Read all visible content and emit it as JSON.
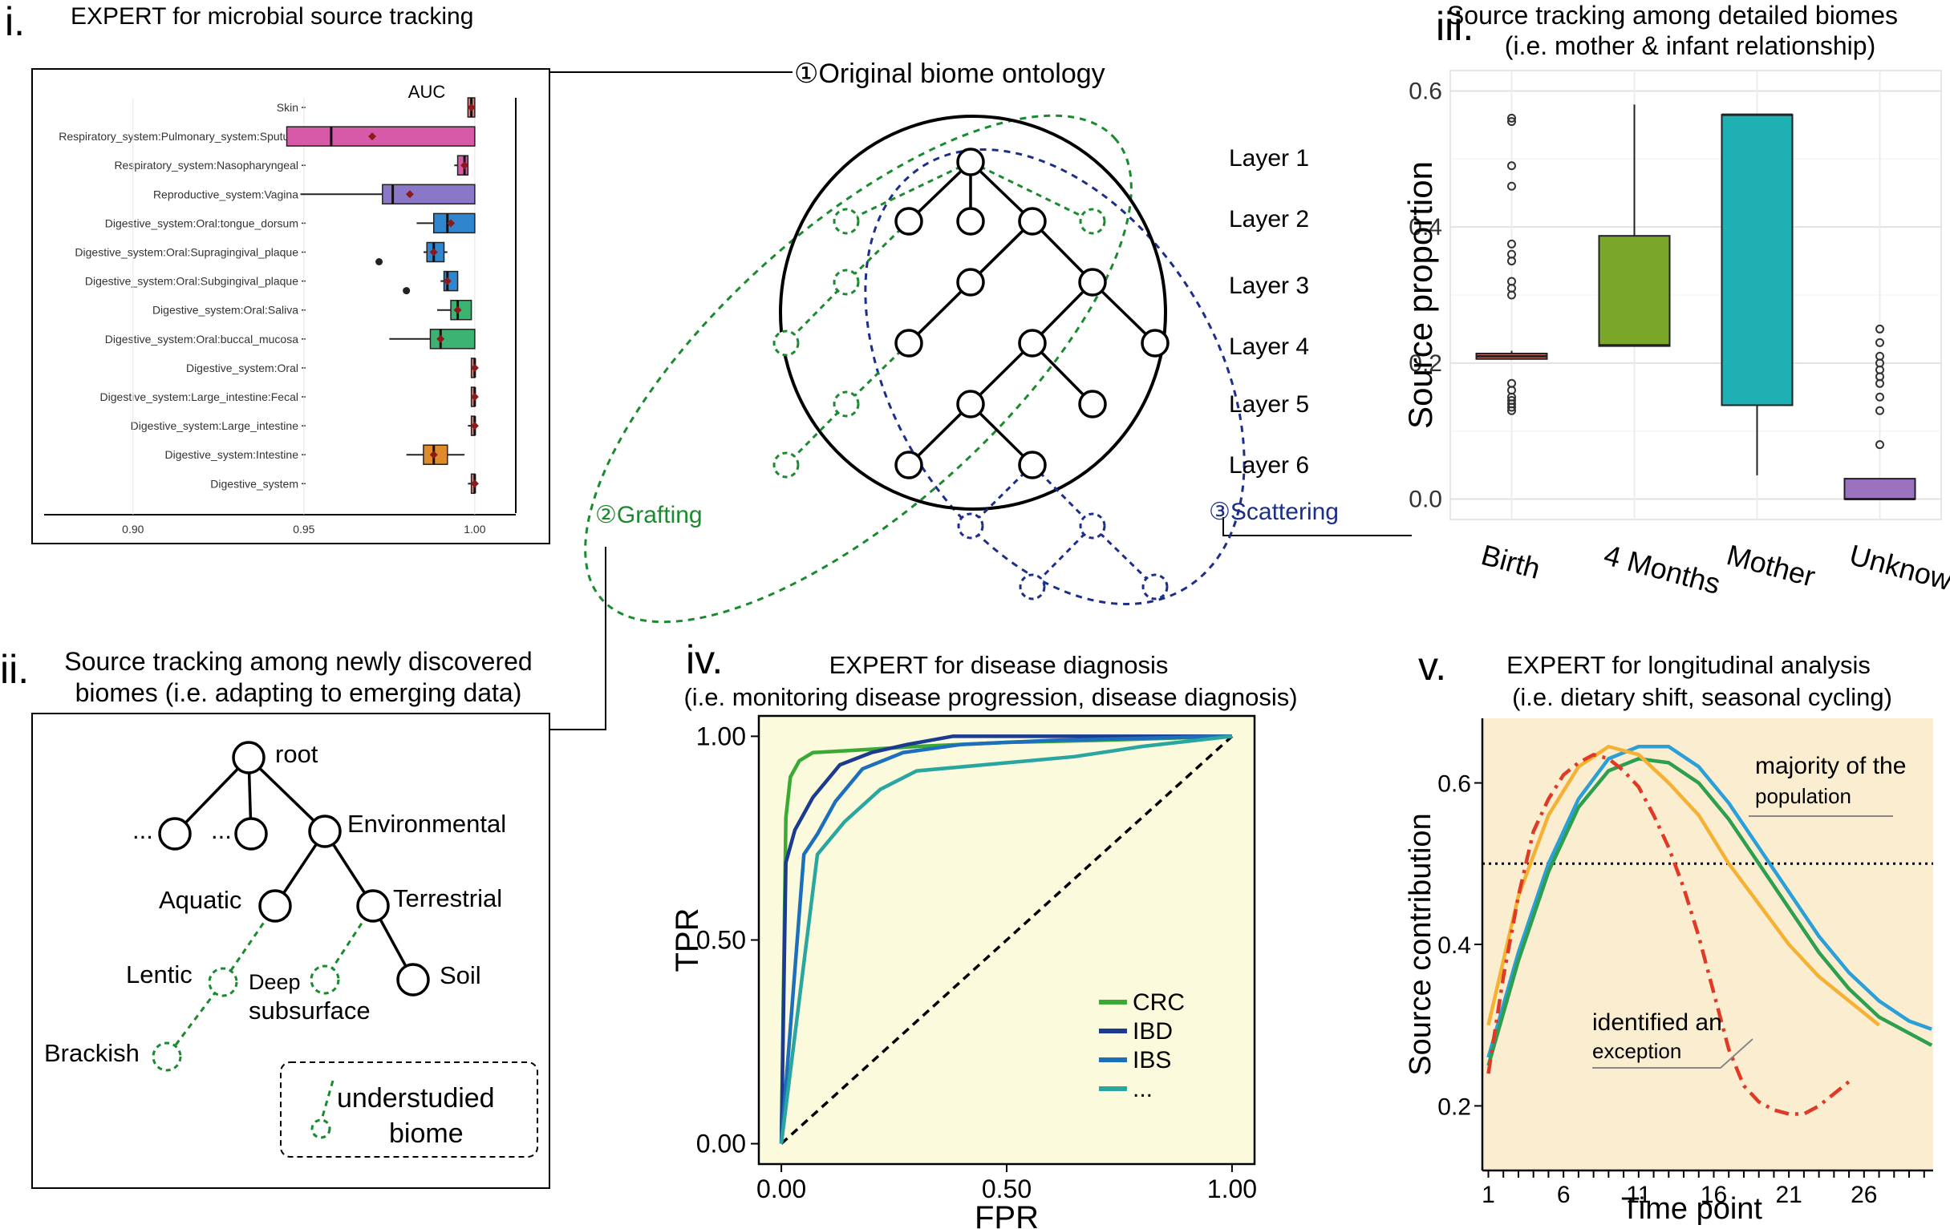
{
  "panel_i": {
    "letter": "i.",
    "title": "EXPERT for microbial source tracking",
    "chart_data": {
      "type": "box",
      "title": "AUC",
      "categories": [
        "Skin",
        "Respiratory_system:Pulmonary_system:Sputum",
        "Respiratory_system:Nasopharyngeal",
        "Reproductive_system:Vagina",
        "Digestive_system:Oral:tongue_dorsum",
        "Digestive_system:Oral:Supragingival_plaque",
        "Digestive_system:Oral:Subgingival_plaque",
        "Digestive_system:Oral:Saliva",
        "Digestive_system:Oral:buccal_mucosa",
        "Digestive_system:Oral",
        "Digestive_system:Large_intestine:Fecal",
        "Digestive_system:Large_intestine",
        "Digestive_system:Intestine",
        "Digestive_system"
      ],
      "xticks": [
        "0.90",
        "0.95",
        "1.00"
      ],
      "xlim": [
        0.874,
        1.012
      ],
      "boxes": [
        {
          "lo": 0.998,
          "q1": 0.998,
          "med": 0.999,
          "q3": 1.0,
          "hi": 1.0,
          "mean": 0.999,
          "color": "#d97b7b"
        },
        {
          "lo": 0.945,
          "q1": 0.945,
          "med": 0.958,
          "q3": 1.0,
          "hi": 1.0,
          "mean": 0.97,
          "color": "#d75aa8"
        },
        {
          "lo": 0.994,
          "q1": 0.995,
          "med": 0.997,
          "q3": 0.998,
          "hi": 0.998,
          "mean": 0.997,
          "color": "#d75aa8"
        },
        {
          "lo": 0.949,
          "q1": 0.973,
          "med": 0.976,
          "q3": 1.0,
          "hi": 1.0,
          "mean": 0.981,
          "color": "#8a77c7"
        },
        {
          "lo": 0.983,
          "q1": 0.988,
          "med": 0.992,
          "q3": 1.0,
          "hi": 1.0,
          "mean": 0.993,
          "color": "#2f86cf"
        },
        {
          "lo": 0.985,
          "q1": 0.986,
          "med": 0.988,
          "q3": 0.991,
          "hi": 0.992,
          "mean": 0.988,
          "color": "#2f86cf",
          "outliers": [
            0.972
          ]
        },
        {
          "lo": 0.99,
          "q1": 0.991,
          "med": 0.992,
          "q3": 0.995,
          "hi": 0.995,
          "mean": 0.992,
          "color": "#2f86cf",
          "outliers": [
            0.98
          ]
        },
        {
          "lo": 0.989,
          "q1": 0.993,
          "med": 0.995,
          "q3": 0.999,
          "hi": 0.999,
          "mean": 0.995,
          "color": "#3cb371"
        },
        {
          "lo": 0.975,
          "q1": 0.987,
          "med": 0.99,
          "q3": 1.0,
          "hi": 1.0,
          "mean": 0.99,
          "color": "#3cb371"
        },
        {
          "lo": 0.999,
          "q1": 0.999,
          "med": 1.0,
          "q3": 1.0,
          "hi": 1.0,
          "mean": 1.0,
          "color": "#d97b7b"
        },
        {
          "lo": 0.999,
          "q1": 0.999,
          "med": 1.0,
          "q3": 1.0,
          "hi": 1.0,
          "mean": 1.0,
          "color": "#d97b7b"
        },
        {
          "lo": 0.998,
          "q1": 0.999,
          "med": 1.0,
          "q3": 1.0,
          "hi": 1.0,
          "mean": 1.0,
          "color": "#d97b7b"
        },
        {
          "lo": 0.98,
          "q1": 0.985,
          "med": 0.988,
          "q3": 0.992,
          "hi": 0.997,
          "mean": 0.988,
          "color": "#e08b2a"
        },
        {
          "lo": 0.998,
          "q1": 0.999,
          "med": 1.0,
          "q3": 1.0,
          "hi": 1.0,
          "mean": 1.0,
          "color": "#d97b7b"
        }
      ]
    }
  },
  "ontology": {
    "title_mark": "①",
    "title": "Original biome ontology",
    "layers": [
      "Layer 1",
      "Layer 2",
      "Layer 3",
      "Layer 4",
      "Layer 5",
      "Layer 6"
    ],
    "grafting_mark": "②",
    "grafting": "Grafting",
    "scattering_mark": "③",
    "scattering": "Scattering",
    "colors": {
      "grafting": "#1a8a2e",
      "scattering": "#1b2f8a",
      "tree": "#000000"
    }
  },
  "panel_ii": {
    "letter": "ii.",
    "title_line1": "Source tracking among newly discovered",
    "title_line2": "biomes (i.e. adapting to emerging data)",
    "labels": {
      "root": "root",
      "ellipsis": "...",
      "environmental": "Environmental",
      "aquatic": "Aquatic",
      "terrestrial": "Terrestrial",
      "lentic": "Lentic",
      "deep": "Deep",
      "subsurface": "subsurface",
      "soil": "Soil",
      "brackish": "Brackish"
    },
    "legend_line1": "understudied",
    "legend_line2": "biome"
  },
  "panel_iii": {
    "letter": "iii.",
    "title_line1": "Source tracking among detailed biomes",
    "title_line2": "(i.e. mother & infant relationship)",
    "chart_data": {
      "type": "box",
      "ylabel": "Source proportion",
      "categories": [
        "Birth",
        "4 Months",
        "Mother",
        "Unknown"
      ],
      "yticks": [
        "0.0",
        "0.2",
        "0.4",
        "0.6"
      ],
      "ylim": [
        -0.03,
        0.63
      ],
      "boxes": [
        {
          "lo": 0.205,
          "q1": 0.206,
          "med": 0.21,
          "q3": 0.214,
          "hi": 0.218,
          "color": "#e07b72",
          "outliers": [
            0.13,
            0.135,
            0.14,
            0.145,
            0.15,
            0.16,
            0.17,
            0.3,
            0.31,
            0.32,
            0.35,
            0.36,
            0.375,
            0.46,
            0.49,
            0.555,
            0.56
          ]
        },
        {
          "lo": 0.225,
          "q1": 0.225,
          "med": 0.226,
          "q3": 0.387,
          "hi": 0.58,
          "color": "#7aa62a",
          "outliers": []
        },
        {
          "lo": 0.035,
          "q1": 0.138,
          "med": 0.565,
          "q3": 0.565,
          "hi": 0.565,
          "color": "#1fb0b3",
          "outliers": []
        },
        {
          "lo": 0.0,
          "q1": 0.0,
          "med": 0.0,
          "q3": 0.03,
          "hi": 0.03,
          "color": "#9b72c0",
          "outliers": [
            0.08,
            0.13,
            0.15,
            0.17,
            0.18,
            0.19,
            0.2,
            0.21,
            0.23,
            0.25
          ]
        }
      ]
    }
  },
  "panel_iv": {
    "letter": "iv.",
    "title_line1": "EXPERT for disease diagnosis",
    "title_line2": "(i.e. monitoring disease progression, disease diagnosis)",
    "chart_data": {
      "type": "line",
      "xlabel": "FPR",
      "ylabel": "TPR",
      "xticks": [
        "0.00",
        "0.50",
        "1.00"
      ],
      "yticks": [
        "0.00",
        "0.50",
        "1.00"
      ],
      "xlim": [
        -0.05,
        1.05
      ],
      "ylim": [
        -0.05,
        1.05
      ],
      "series": [
        {
          "name": "CRC",
          "color": "#3aaa35",
          "x": [
            0,
            0.01,
            0.02,
            0.04,
            0.07,
            0.15,
            0.3,
            0.5,
            0.7,
            1.0
          ],
          "y": [
            0,
            0.8,
            0.9,
            0.94,
            0.96,
            0.965,
            0.975,
            0.985,
            0.99,
            1.0
          ]
        },
        {
          "name": "IBD",
          "color": "#1a3b8f",
          "x": [
            0,
            0.01,
            0.03,
            0.07,
            0.13,
            0.2,
            0.28,
            0.38,
            0.6,
            1.0
          ],
          "y": [
            0,
            0.69,
            0.77,
            0.85,
            0.93,
            0.96,
            0.98,
            1.0,
            1.0,
            1.0
          ]
        },
        {
          "name": "IBS",
          "color": "#1d6fbd",
          "x": [
            0,
            0.05,
            0.08,
            0.12,
            0.18,
            0.27,
            0.4,
            0.6,
            1.0
          ],
          "y": [
            0,
            0.71,
            0.76,
            0.84,
            0.92,
            0.96,
            0.98,
            0.99,
            1.0
          ]
        },
        {
          "name": "...",
          "color": "#2aa6a0",
          "x": [
            0,
            0.08,
            0.14,
            0.22,
            0.3,
            0.45,
            0.65,
            0.8,
            1.0
          ],
          "y": [
            0,
            0.71,
            0.79,
            0.87,
            0.915,
            0.93,
            0.95,
            0.975,
            1.0
          ]
        }
      ],
      "diagonal": true,
      "background": "#fbfadc"
    }
  },
  "panel_v": {
    "letter": "v.",
    "title_line1": "EXPERT for longitudinal analysis",
    "title_line2": "(i.e. dietary shift, seasonal cycling)",
    "chart_data": {
      "type": "line",
      "xlabel": "Time point",
      "ylabel": "Source contribution",
      "xticks": [
        "1",
        "6",
        "11",
        "16",
        "21",
        "26"
      ],
      "yticks": [
        "0.2",
        "0.4",
        "0.6"
      ],
      "xlim": [
        0.6,
        30.6
      ],
      "ylim": [
        0.12,
        0.68
      ],
      "threshold": 0.5,
      "annotations": {
        "majority_line1": "majority of the",
        "majority_line2": "population",
        "exception_line1": "identified an",
        "exception_line2": "exception"
      },
      "series": [
        {
          "color": "#2a9fd8",
          "dash": "",
          "x": [
            1,
            3,
            5,
            7,
            9,
            11,
            13,
            15,
            17,
            19,
            21,
            23,
            25,
            27,
            29,
            30.5
          ],
          "y": [
            0.26,
            0.39,
            0.5,
            0.58,
            0.63,
            0.645,
            0.645,
            0.62,
            0.575,
            0.52,
            0.465,
            0.41,
            0.365,
            0.33,
            0.305,
            0.295
          ]
        },
        {
          "color": "#2e9e4f",
          "dash": "",
          "x": [
            1,
            3,
            5,
            7,
            9,
            11,
            13,
            15,
            17,
            19,
            21,
            23,
            25,
            27,
            29,
            30.5
          ],
          "y": [
            0.25,
            0.38,
            0.49,
            0.57,
            0.615,
            0.63,
            0.625,
            0.6,
            0.555,
            0.5,
            0.445,
            0.39,
            0.345,
            0.31,
            0.29,
            0.275
          ]
        },
        {
          "color": "#f4b134",
          "dash": "",
          "x": [
            1,
            3,
            5,
            7,
            9,
            11,
            13,
            15,
            17,
            19,
            21,
            23,
            25,
            27
          ],
          "y": [
            0.3,
            0.46,
            0.56,
            0.62,
            0.645,
            0.635,
            0.6,
            0.56,
            0.5,
            0.45,
            0.4,
            0.36,
            0.33,
            0.3
          ]
        },
        {
          "color": "#e03a26",
          "dash": "18,8,4,8",
          "x": [
            1,
            2,
            3,
            4,
            5,
            6,
            7,
            8,
            9,
            10,
            11,
            12,
            13,
            14,
            15,
            16,
            17,
            18,
            19,
            20,
            21,
            22,
            23,
            24,
            25
          ],
          "y": [
            0.24,
            0.36,
            0.46,
            0.54,
            0.58,
            0.61,
            0.625,
            0.635,
            0.63,
            0.615,
            0.595,
            0.56,
            0.52,
            0.47,
            0.41,
            0.34,
            0.27,
            0.225,
            0.205,
            0.195,
            0.19,
            0.19,
            0.2,
            0.215,
            0.23
          ]
        }
      ],
      "background": "#fbeed0"
    }
  }
}
